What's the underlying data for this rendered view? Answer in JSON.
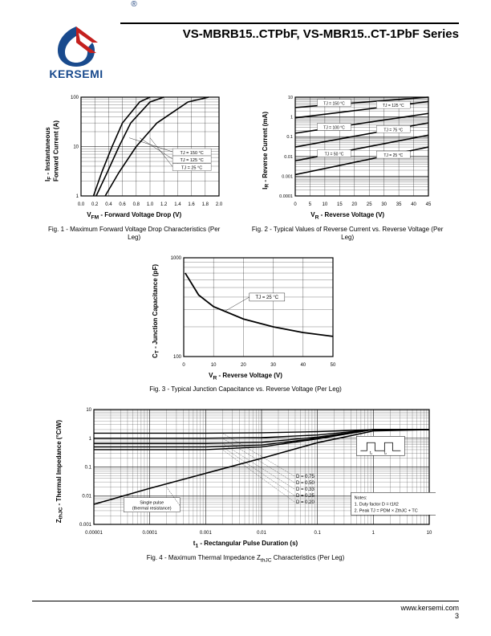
{
  "header": {
    "brand": "KERSEMI",
    "title": "VS-MBRB15..CTPbF, VS-MBR15..CT-1PbF Series",
    "logo_colors": {
      "blue": "#194a8d",
      "red": "#c4201e"
    }
  },
  "fig1": {
    "type": "line",
    "title": "Fig. 1 - Maximum Forward Voltage Drop Characteristics (Per Leg)",
    "xlabel": "V_FM - Forward Voltage Drop (V)",
    "ylabel": "I_F - Instantaneous Forward Current (A)",
    "xlim": [
      0.0,
      2.0
    ],
    "xtick_step": 0.2,
    "ylim": [
      1,
      100
    ],
    "yscale": "log",
    "series_labels": [
      "T_J = 150 °C",
      "T_J = 125 °C",
      "T_J = 25 °C"
    ],
    "grid_color": "#000000",
    "series": {
      "150C": [
        [
          0.18,
          1
        ],
        [
          0.3,
          3
        ],
        [
          0.45,
          10
        ],
        [
          0.6,
          30
        ],
        [
          0.85,
          80
        ],
        [
          1.0,
          100
        ]
      ],
      "125C": [
        [
          0.22,
          1
        ],
        [
          0.38,
          3
        ],
        [
          0.55,
          10
        ],
        [
          0.72,
          30
        ],
        [
          1.0,
          80
        ],
        [
          1.2,
          100
        ]
      ],
      "25C": [
        [
          0.35,
          1
        ],
        [
          0.55,
          3
        ],
        [
          0.8,
          10
        ],
        [
          1.1,
          30
        ],
        [
          1.55,
          80
        ],
        [
          1.85,
          100
        ]
      ]
    }
  },
  "fig2": {
    "type": "line",
    "title": "Fig. 2 - Typical Values of Reverse Current vs. Reverse Voltage (Per Leg)",
    "xlabel": "V_R - Reverse Voltage (V)",
    "ylabel": "I_R - Reverse Current (mA)",
    "xlim": [
      0,
      45
    ],
    "xtick_step": 5,
    "ylim": [
      0.0001,
      10
    ],
    "yscale": "log",
    "series_labels": [
      "T_J = 150 °C",
      "T_J = 125 °C",
      "T_J = 100 °C",
      "T_J = 75 °C",
      "T_J = 50 °C",
      "T_J = 25 °C"
    ],
    "grid_color": "#000000",
    "series": {
      "150C": [
        [
          0,
          3
        ],
        [
          45,
          10
        ]
      ],
      "125C": [
        [
          0,
          0.9
        ],
        [
          45,
          6
        ]
      ],
      "100C": [
        [
          0,
          0.15
        ],
        [
          45,
          1.5
        ]
      ],
      "75C": [
        [
          0,
          0.03
        ],
        [
          45,
          0.5
        ]
      ],
      "50C": [
        [
          0,
          0.006
        ],
        [
          45,
          0.12
        ]
      ],
      "25C": [
        [
          0,
          0.0012
        ],
        [
          45,
          0.03
        ]
      ]
    }
  },
  "fig3": {
    "type": "line",
    "title": "Fig. 3 - Typical Junction Capacitance vs. Reverse Voltage (Per Leg)",
    "xlabel": "V_R - Reverse Voltage (V)",
    "ylabel": "C_T - Junction Capacitance (pF)",
    "xlim": [
      0,
      50
    ],
    "xtick_step": 10,
    "ylim": [
      100,
      1000
    ],
    "yscale": "log",
    "series_labels": [
      "T_J = 25 °C"
    ],
    "grid_color": "#000000",
    "series": {
      "25C": [
        [
          0.5,
          700
        ],
        [
          5,
          420
        ],
        [
          10,
          320
        ],
        [
          20,
          240
        ],
        [
          30,
          200
        ],
        [
          40,
          175
        ],
        [
          50,
          160
        ]
      ]
    }
  },
  "fig4": {
    "type": "line",
    "title": "Fig. 4 - Maximum Thermal Impedance Z_thJC Characteristics (Per Leg)",
    "xlabel": "t_1 - Rectangular Pulse Duration (s)",
    "ylabel": "Z_thJC - Thermal Impedance (°C/W)",
    "xlim": [
      1e-05,
      10
    ],
    "xscale": "log",
    "ylim": [
      0.001,
      10
    ],
    "yscale": "log",
    "grid_color": "#000000",
    "D_labels": [
      "D = 0.75",
      "D = 0.50",
      "D = 0.33",
      "D = 0.25",
      "D = 0.20"
    ],
    "single_pulse_label": "Single pulse (thermal resistance)",
    "notes": [
      "Notes:",
      "1. Duty factor D = t_1/t_2",
      "2. Peak T_J = P_DM × Z_thJC + T_C"
    ],
    "series": {
      "D075": [
        [
          1e-05,
          1.5
        ],
        [
          0.001,
          1.5
        ],
        [
          0.01,
          1.55
        ],
        [
          0.1,
          1.7
        ],
        [
          1,
          2
        ],
        [
          10,
          2
        ]
      ],
      "D050": [
        [
          1e-05,
          1.0
        ],
        [
          0.001,
          1.0
        ],
        [
          0.01,
          1.05
        ],
        [
          0.1,
          1.3
        ],
        [
          1,
          2
        ],
        [
          10,
          2
        ]
      ],
      "D033": [
        [
          1e-05,
          0.66
        ],
        [
          0.001,
          0.66
        ],
        [
          0.01,
          0.72
        ],
        [
          0.1,
          1.1
        ],
        [
          1,
          2
        ],
        [
          10,
          2
        ]
      ],
      "D025": [
        [
          1e-05,
          0.5
        ],
        [
          0.001,
          0.5
        ],
        [
          0.01,
          0.58
        ],
        [
          0.1,
          1.0
        ],
        [
          1,
          2
        ],
        [
          10,
          2
        ]
      ],
      "D020": [
        [
          1e-05,
          0.4
        ],
        [
          0.001,
          0.4
        ],
        [
          0.01,
          0.5
        ],
        [
          0.1,
          0.95
        ],
        [
          1,
          2
        ],
        [
          10,
          2
        ]
      ],
      "single": [
        [
          1e-05,
          0.005
        ],
        [
          0.0001,
          0.018
        ],
        [
          0.001,
          0.06
        ],
        [
          0.01,
          0.2
        ],
        [
          0.1,
          0.7
        ],
        [
          1,
          1.8
        ],
        [
          10,
          2
        ]
      ]
    }
  },
  "footer": {
    "url": "www.kersemi.com",
    "page": "3"
  }
}
